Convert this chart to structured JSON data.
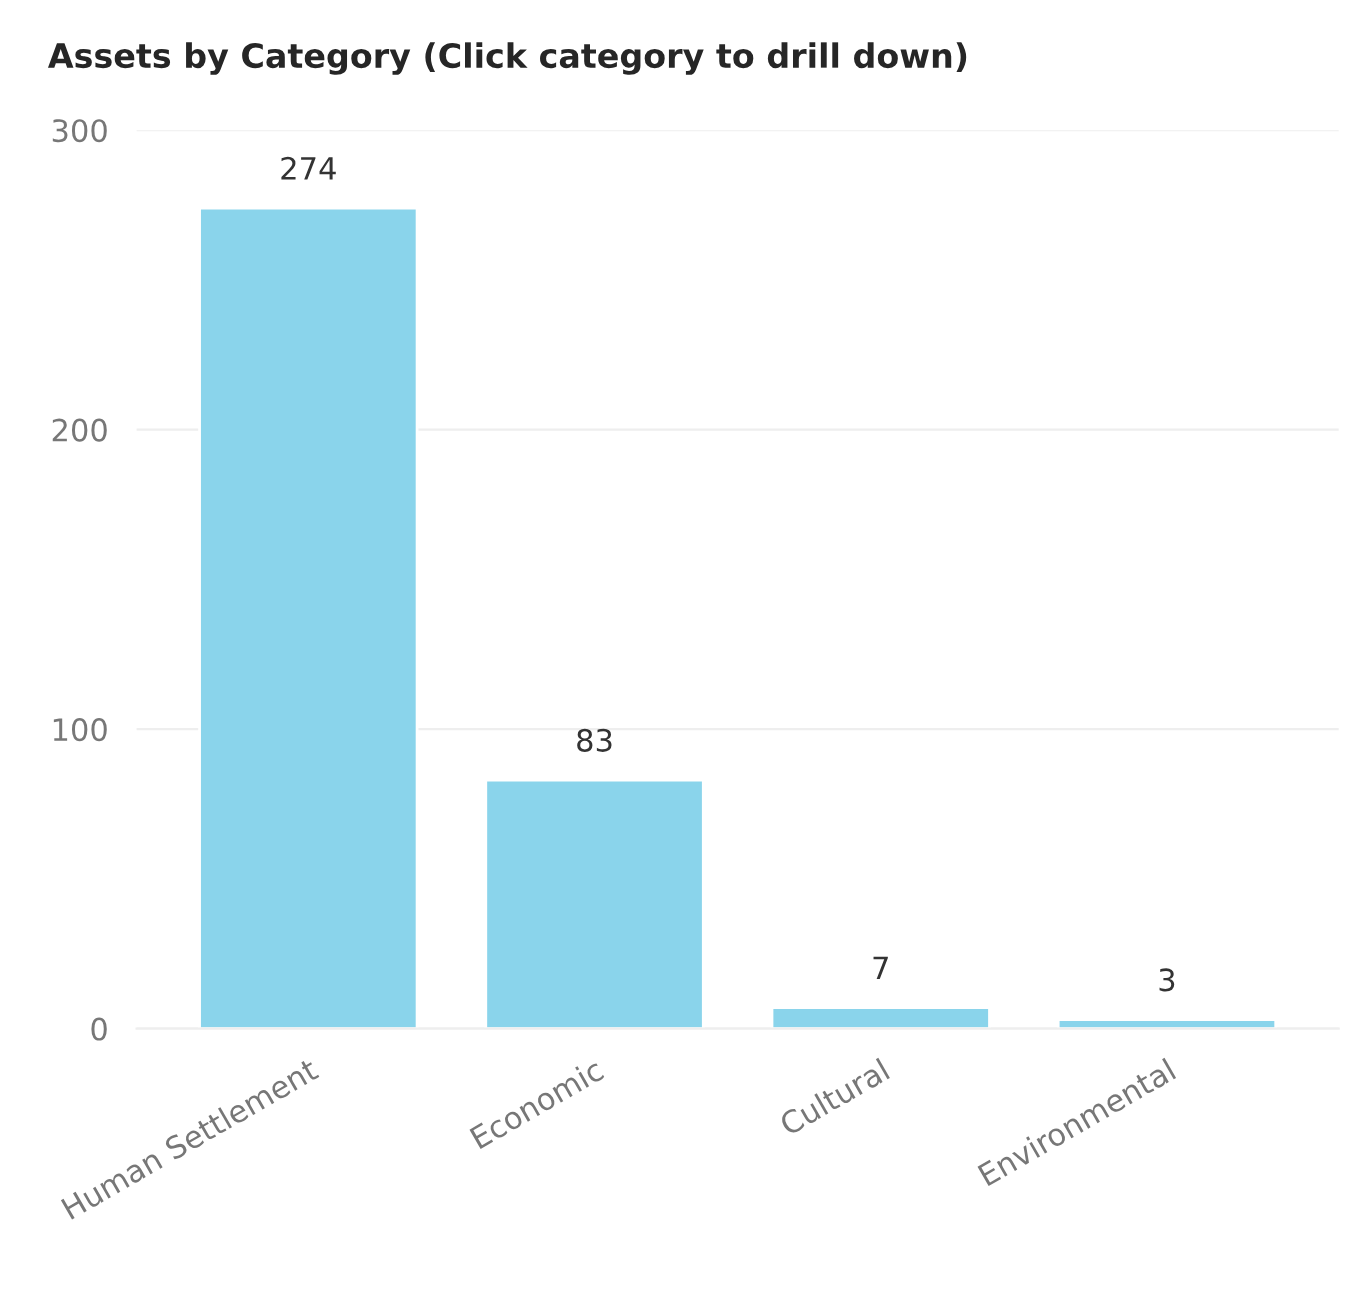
{
  "chart_data": {
    "type": "bar",
    "title": "Assets by Category (Click category to drill down)",
    "categories": [
      "Human Settlement",
      "Economic",
      "Cultural",
      "Environmental"
    ],
    "values": [
      274,
      83,
      7,
      3
    ],
    "color": "#8ad4eb",
    "ylim": [
      0,
      300
    ],
    "yticks": [
      0,
      100,
      200,
      300
    ],
    "grid": "y",
    "data_labels": true
  }
}
